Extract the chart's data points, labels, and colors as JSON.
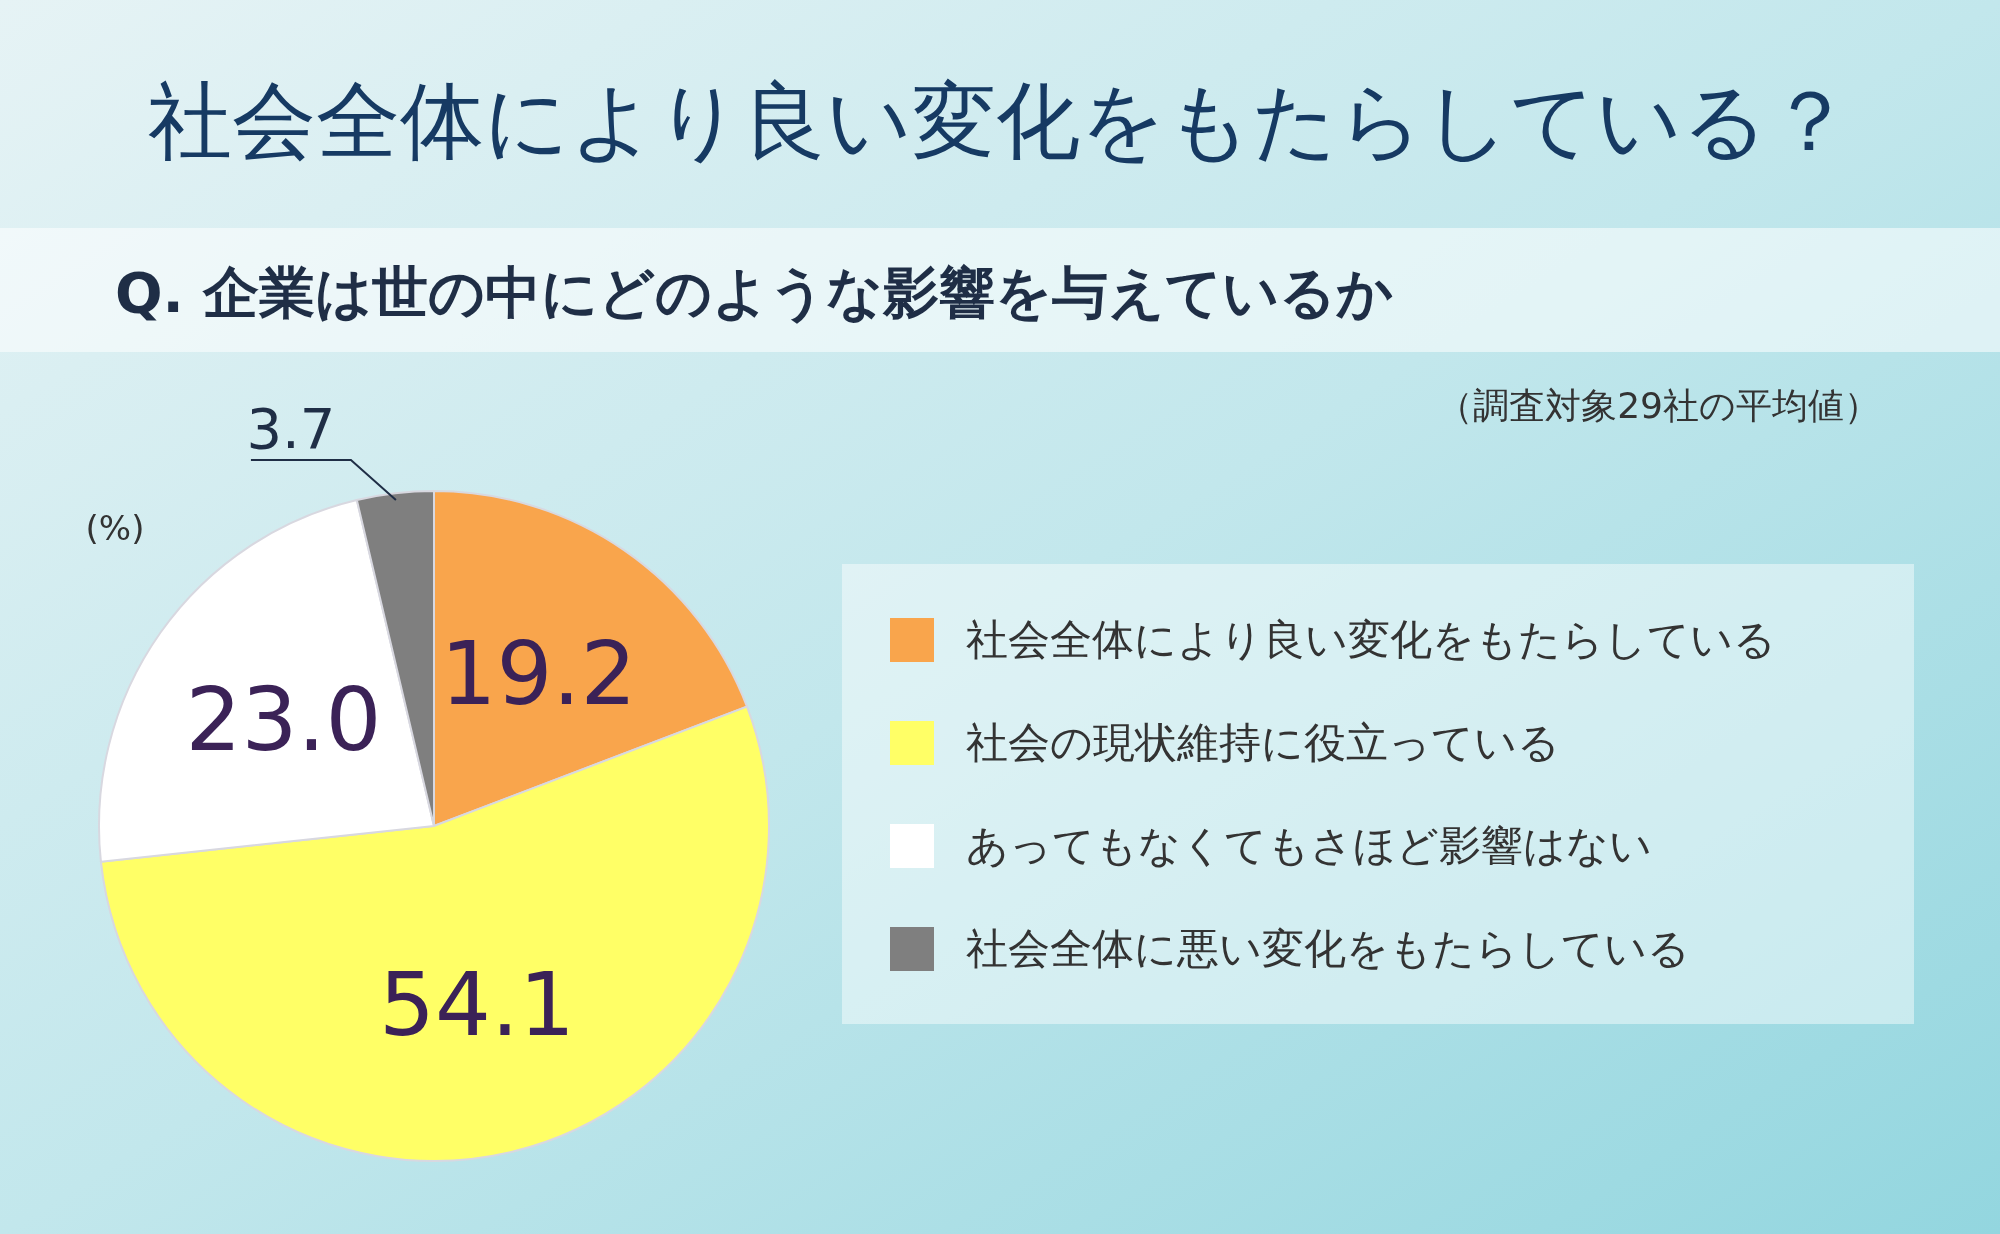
{
  "chart_data": {
    "type": "pie",
    "title": "社会全体により良い変化をもたらしている？",
    "subtitle": "Q. 企業は世の中にどのような影響を与えているか",
    "annotations": [
      "（調査対象29社の平均値）",
      "(%)"
    ],
    "categories": [
      "社会全体により良い変化をもたらしている",
      "社会の現状維持に役立っている",
      "あってもなくてもさほど影響はない",
      "社会全体に悪い変化をもたらしている"
    ],
    "values": [
      19.2,
      54.1,
      23.0,
      3.7
    ],
    "value_labels": [
      "19.2",
      "54.1",
      "23.0",
      "3.7"
    ],
    "colors": [
      "#f9a54c",
      "#ffff66",
      "#ffffff",
      "#7f7f7f"
    ],
    "legend": "right"
  }
}
